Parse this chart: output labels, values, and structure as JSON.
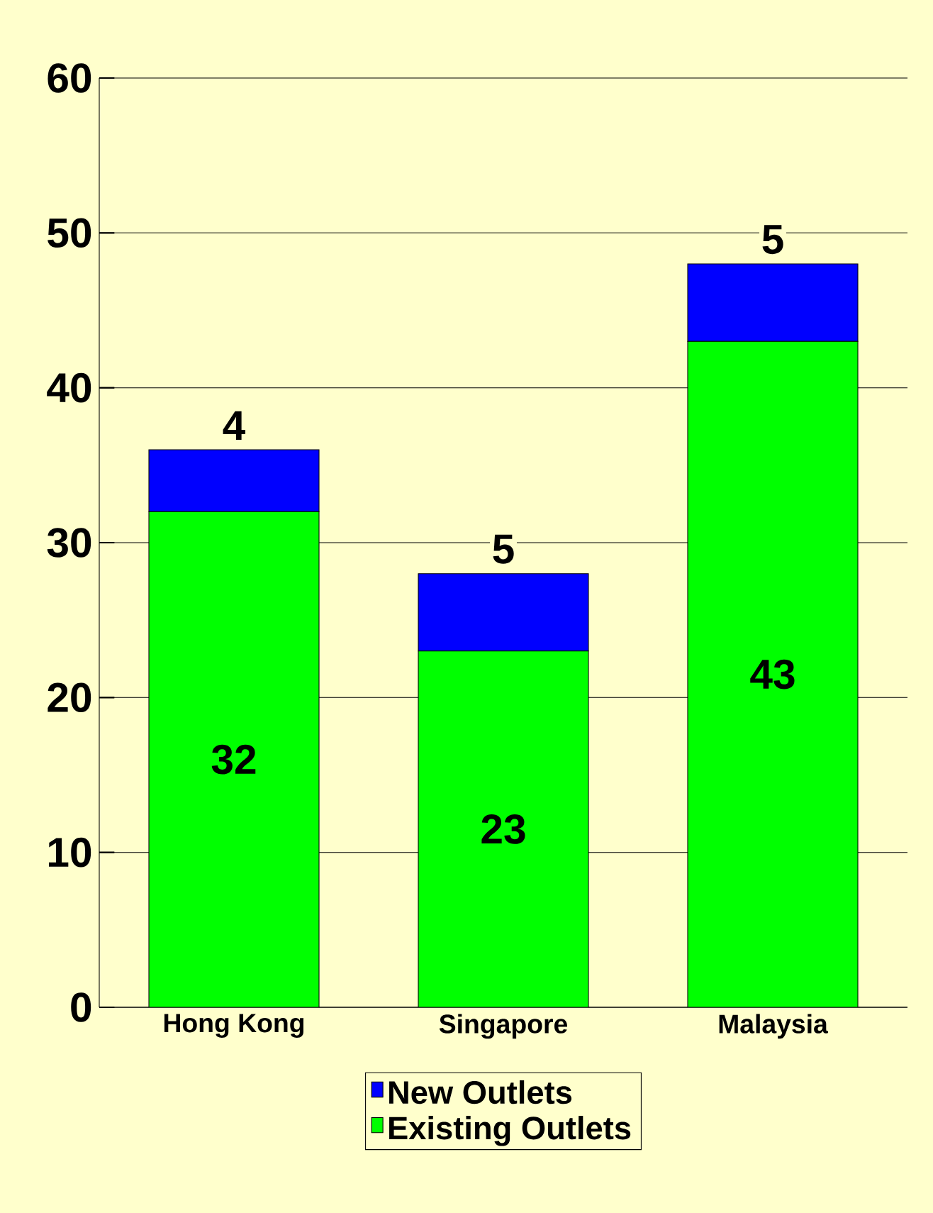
{
  "chart_data": {
    "type": "bar",
    "stacked": true,
    "categories": [
      "Hong Kong",
      "Singapore",
      "Malaysia"
    ],
    "series": [
      {
        "name": "Existing Outlets",
        "color": "#00ff00",
        "values": [
          32,
          23,
          43
        ]
      },
      {
        "name": "New Outlets",
        "color": "#0000ff",
        "values": [
          4,
          5,
          5
        ]
      }
    ],
    "ylim": [
      0,
      60
    ],
    "yticks": [
      0,
      10,
      20,
      30,
      40,
      50,
      60
    ],
    "grid": "y",
    "legend": "bottom",
    "data_labels": true
  }
}
